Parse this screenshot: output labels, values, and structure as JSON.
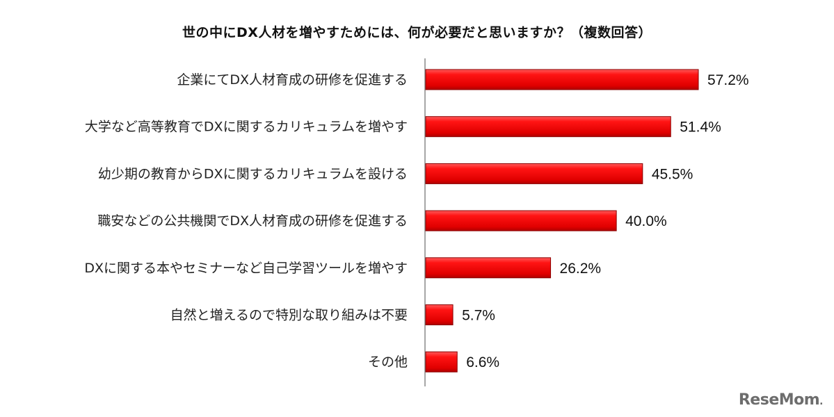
{
  "chart_data": {
    "type": "bar",
    "orientation": "horizontal",
    "title": "世の中にDX人材を増やすためには、何が必要だと思いますか？（複数回答）",
    "categories": [
      "企業にてDX人材育成の研修を促進する",
      "大学など高等教育でDXに関するカリキュラムを増やす",
      "幼少期の教育からDXに関するカリキュラムを設ける",
      "職安などの公共機関でDX人材育成の研修を促進する",
      "DXに関する本やセミナーなど自己学習ツールを増やす",
      "自然と増えるので特別な取り組みは不要",
      "その他"
    ],
    "values": [
      57.2,
      51.4,
      45.5,
      40.0,
      26.2,
      5.7,
      6.6
    ],
    "value_labels": [
      "57.2%",
      "51.4%",
      "45.5%",
      "40.0%",
      "26.2%",
      "5.7%",
      "6.6%"
    ],
    "unit": "%",
    "xlim": [
      0,
      70
    ],
    "grid": false,
    "legend": "none",
    "bar_color": "#ee1111",
    "bar_edge_color": "#8a0000"
  },
  "watermark": {
    "text": "ReseMom",
    "suffix": "."
  }
}
